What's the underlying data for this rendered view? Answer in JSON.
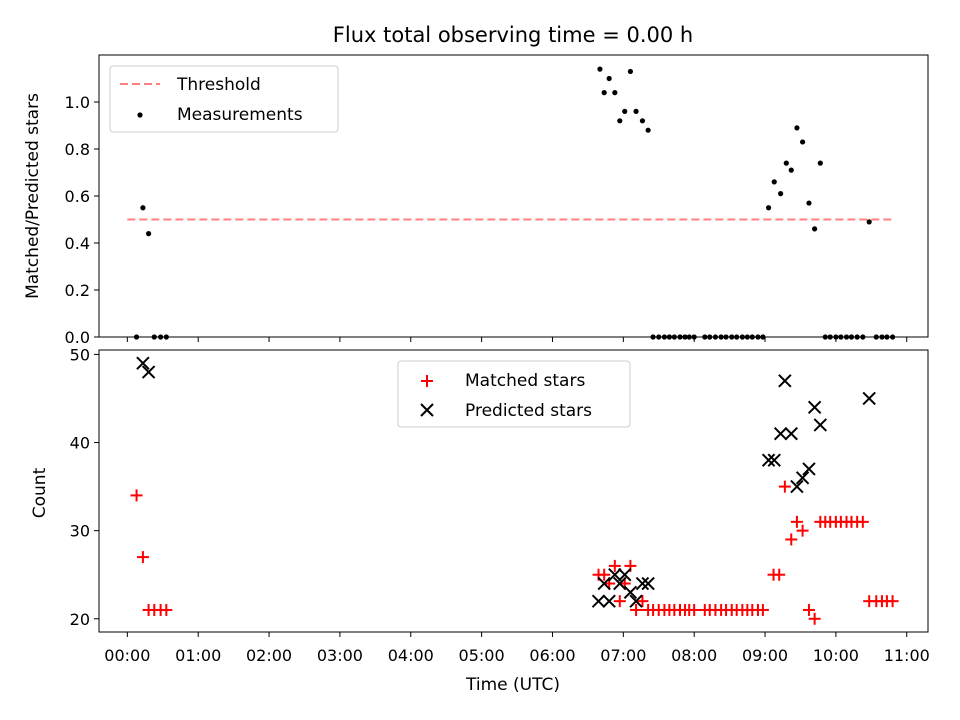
{
  "title": "Flux total observing time = 0.00 h",
  "colors": {
    "threshold": "#ff8080",
    "measurements": "#000000",
    "matched": "#ff0000",
    "predicted": "#000000"
  },
  "chart_data": [
    {
      "type": "scatter",
      "ylabel": "Matched/Predicted stars",
      "xlim": [
        -0.4,
        11.3
      ],
      "ylim": [
        0,
        1.2
      ],
      "yticks": [
        0.0,
        0.2,
        0.4,
        0.6,
        0.8,
        1.0
      ],
      "legend": "top-left",
      "threshold": {
        "name": "Threshold",
        "y": 0.5,
        "x": [
          0.0,
          10.8
        ]
      },
      "series": [
        {
          "name": "Measurements",
          "points": [
            [
              0.13,
              0.0
            ],
            [
              0.22,
              0.55
            ],
            [
              0.3,
              0.44
            ],
            [
              0.38,
              0.0
            ],
            [
              0.47,
              0.0
            ],
            [
              0.55,
              0.0
            ],
            [
              6.67,
              1.14
            ],
            [
              6.73,
              1.04
            ],
            [
              6.8,
              1.1
            ],
            [
              6.88,
              1.04
            ],
            [
              6.95,
              0.92
            ],
            [
              7.02,
              0.96
            ],
            [
              7.1,
              1.13
            ],
            [
              7.18,
              0.96
            ],
            [
              7.27,
              0.92
            ],
            [
              7.35,
              0.88
            ],
            [
              7.42,
              0.0
            ],
            [
              7.5,
              0.0
            ],
            [
              7.58,
              0.0
            ],
            [
              7.65,
              0.0
            ],
            [
              7.72,
              0.0
            ],
            [
              7.8,
              0.0
            ],
            [
              7.87,
              0.0
            ],
            [
              7.93,
              0.0
            ],
            [
              8.0,
              0.0
            ],
            [
              8.15,
              0.0
            ],
            [
              8.22,
              0.0
            ],
            [
              8.3,
              0.0
            ],
            [
              8.38,
              0.0
            ],
            [
              8.45,
              0.0
            ],
            [
              8.53,
              0.0
            ],
            [
              8.6,
              0.0
            ],
            [
              8.68,
              0.0
            ],
            [
              8.75,
              0.0
            ],
            [
              8.82,
              0.0
            ],
            [
              8.9,
              0.0
            ],
            [
              8.97,
              0.0
            ],
            [
              9.05,
              0.55
            ],
            [
              9.13,
              0.66
            ],
            [
              9.22,
              0.61
            ],
            [
              9.3,
              0.74
            ],
            [
              9.37,
              0.71
            ],
            [
              9.45,
              0.89
            ],
            [
              9.53,
              0.83
            ],
            [
              9.62,
              0.57
            ],
            [
              9.7,
              0.46
            ],
            [
              9.78,
              0.74
            ],
            [
              9.85,
              0.0
            ],
            [
              9.92,
              0.0
            ],
            [
              10.0,
              0.0
            ],
            [
              10.07,
              0.0
            ],
            [
              10.15,
              0.0
            ],
            [
              10.22,
              0.0
            ],
            [
              10.3,
              0.0
            ],
            [
              10.38,
              0.0
            ],
            [
              10.47,
              0.49
            ],
            [
              10.57,
              0.0
            ],
            [
              10.65,
              0.0
            ],
            [
              10.72,
              0.0
            ],
            [
              10.8,
              0.0
            ]
          ]
        }
      ]
    },
    {
      "type": "scatter",
      "xlabel": "Time (UTC)",
      "ylabel": "Count",
      "xlim": [
        -0.4,
        11.3
      ],
      "ylim": [
        18.5,
        50.5
      ],
      "yticks": [
        20,
        30,
        40,
        50
      ],
      "xticks": [
        "00:00",
        "01:00",
        "02:00",
        "03:00",
        "04:00",
        "05:00",
        "06:00",
        "07:00",
        "08:00",
        "09:00",
        "10:00",
        "11:00"
      ],
      "legend": "upper center",
      "series": [
        {
          "name": "Matched stars",
          "points": [
            [
              0.13,
              34
            ],
            [
              0.22,
              27
            ],
            [
              0.3,
              21
            ],
            [
              0.38,
              21
            ],
            [
              0.47,
              21
            ],
            [
              0.55,
              21
            ],
            [
              6.65,
              25
            ],
            [
              6.73,
              25
            ],
            [
              6.8,
              24
            ],
            [
              6.88,
              26
            ],
            [
              6.95,
              22
            ],
            [
              7.02,
              24
            ],
            [
              7.1,
              26
            ],
            [
              7.18,
              21
            ],
            [
              7.27,
              22
            ],
            [
              7.35,
              21
            ],
            [
              7.42,
              21
            ],
            [
              7.5,
              21
            ],
            [
              7.58,
              21
            ],
            [
              7.65,
              21
            ],
            [
              7.72,
              21
            ],
            [
              7.8,
              21
            ],
            [
              7.87,
              21
            ],
            [
              7.93,
              21
            ],
            [
              8.0,
              21
            ],
            [
              8.15,
              21
            ],
            [
              8.22,
              21
            ],
            [
              8.3,
              21
            ],
            [
              8.38,
              21
            ],
            [
              8.45,
              21
            ],
            [
              8.53,
              21
            ],
            [
              8.6,
              21
            ],
            [
              8.68,
              21
            ],
            [
              8.75,
              21
            ],
            [
              8.82,
              21
            ],
            [
              8.9,
              21
            ],
            [
              8.97,
              21
            ],
            [
              9.12,
              25
            ],
            [
              9.2,
              25
            ],
            [
              9.28,
              35
            ],
            [
              9.37,
              29
            ],
            [
              9.45,
              31
            ],
            [
              9.53,
              30
            ],
            [
              9.62,
              21
            ],
            [
              9.7,
              20
            ],
            [
              9.78,
              31
            ],
            [
              9.85,
              31
            ],
            [
              9.92,
              31
            ],
            [
              10.0,
              31
            ],
            [
              10.07,
              31
            ],
            [
              10.15,
              31
            ],
            [
              10.22,
              31
            ],
            [
              10.3,
              31
            ],
            [
              10.38,
              31
            ],
            [
              10.47,
              22
            ],
            [
              10.57,
              22
            ],
            [
              10.65,
              22
            ],
            [
              10.72,
              22
            ],
            [
              10.8,
              22
            ]
          ]
        },
        {
          "name": "Predicted stars",
          "points": [
            [
              0.22,
              49
            ],
            [
              0.3,
              48
            ],
            [
              6.65,
              22
            ],
            [
              6.73,
              24
            ],
            [
              6.8,
              22
            ],
            [
              6.88,
              25
            ],
            [
              6.95,
              24
            ],
            [
              7.02,
              25
            ],
            [
              7.1,
              23
            ],
            [
              7.18,
              22
            ],
            [
              7.27,
              24
            ],
            [
              7.35,
              24
            ],
            [
              9.05,
              38
            ],
            [
              9.13,
              38
            ],
            [
              9.22,
              41
            ],
            [
              9.28,
              47
            ],
            [
              9.37,
              41
            ],
            [
              9.45,
              35
            ],
            [
              9.53,
              36
            ],
            [
              9.62,
              37
            ],
            [
              9.7,
              44
            ],
            [
              9.78,
              42
            ],
            [
              10.47,
              45
            ]
          ]
        }
      ]
    }
  ]
}
